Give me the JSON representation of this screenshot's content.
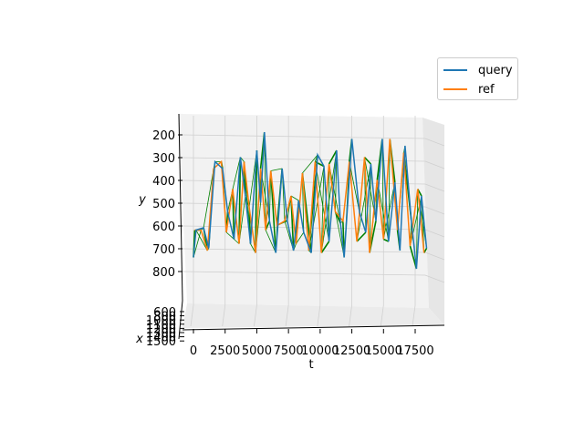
{
  "chart_data": {
    "type": "line",
    "projection": "3d",
    "title": "",
    "xlabel": "t",
    "ylabel": "y",
    "zlabel": "x",
    "t_ticks": [
      "0",
      "2500",
      "5000",
      "7500",
      "10000",
      "12500",
      "15000",
      "17500"
    ],
    "t_range": [
      -1000,
      19500
    ],
    "y_ticks": [
      "200",
      "300",
      "400",
      "500",
      "600",
      "700",
      "800"
    ],
    "y_range": [
      150,
      850
    ],
    "y_inverted": true,
    "x_ticks": [
      "600",
      "800",
      "1000",
      "1100",
      "1200",
      "1300",
      "1400",
      "1500"
    ],
    "grid": true,
    "legend": {
      "placement": "top-right"
    },
    "series": [
      {
        "name": "query",
        "color": "#1f77b4",
        "points": [
          [
            0,
            720
          ],
          [
            200,
            600
          ],
          [
            800,
            590
          ],
          [
            1200,
            680
          ],
          [
            1700,
            300
          ],
          [
            2300,
            330
          ],
          [
            2700,
            520
          ],
          [
            3200,
            640
          ],
          [
            3700,
            280
          ],
          [
            4100,
            450
          ],
          [
            4500,
            660
          ],
          [
            5000,
            250
          ],
          [
            5300,
            480
          ],
          [
            5600,
            170
          ],
          [
            6000,
            560
          ],
          [
            6500,
            700
          ],
          [
            7000,
            330
          ],
          [
            7400,
            560
          ],
          [
            7900,
            690
          ],
          [
            8300,
            470
          ],
          [
            8700,
            610
          ],
          [
            9300,
            700
          ],
          [
            9800,
            270
          ],
          [
            10300,
            320
          ],
          [
            10700,
            650
          ],
          [
            11300,
            250
          ],
          [
            11600,
            570
          ],
          [
            11900,
            720
          ],
          [
            12500,
            200
          ],
          [
            13100,
            520
          ],
          [
            13600,
            610
          ],
          [
            14000,
            310
          ],
          [
            14400,
            560
          ],
          [
            14900,
            200
          ],
          [
            15400,
            650
          ],
          [
            15900,
            390
          ],
          [
            16300,
            690
          ],
          [
            16700,
            230
          ],
          [
            17200,
            560
          ],
          [
            17600,
            770
          ],
          [
            18000,
            450
          ],
          [
            18400,
            680
          ]
        ]
      },
      {
        "name": "ref",
        "color": "#ff7f0e",
        "points": [
          [
            100,
            600
          ],
          [
            600,
            600
          ],
          [
            1100,
            690
          ],
          [
            1600,
            330
          ],
          [
            2200,
            300
          ],
          [
            2600,
            610
          ],
          [
            3100,
            420
          ],
          [
            3600,
            660
          ],
          [
            4000,
            300
          ],
          [
            4400,
            500
          ],
          [
            4900,
            700
          ],
          [
            5300,
            330
          ],
          [
            5700,
            600
          ],
          [
            6100,
            340
          ],
          [
            6600,
            580
          ],
          [
            7200,
            560
          ],
          [
            7700,
            450
          ],
          [
            8100,
            660
          ],
          [
            8600,
            350
          ],
          [
            9100,
            690
          ],
          [
            9600,
            300
          ],
          [
            10100,
            700
          ],
          [
            10700,
            310
          ],
          [
            11200,
            520
          ],
          [
            11800,
            560
          ],
          [
            12300,
            300
          ],
          [
            12900,
            650
          ],
          [
            13500,
            280
          ],
          [
            13900,
            700
          ],
          [
            14500,
            380
          ],
          [
            15000,
            640
          ],
          [
            15500,
            200
          ],
          [
            16100,
            600
          ],
          [
            16600,
            260
          ],
          [
            17100,
            670
          ],
          [
            17700,
            420
          ],
          [
            18200,
            700
          ]
        ]
      }
    ],
    "alignment_color": "#008000"
  },
  "legend": {
    "items": [
      {
        "label": "query",
        "color": "#1f77b4"
      },
      {
        "label": "ref",
        "color": "#ff7f0e"
      }
    ]
  }
}
